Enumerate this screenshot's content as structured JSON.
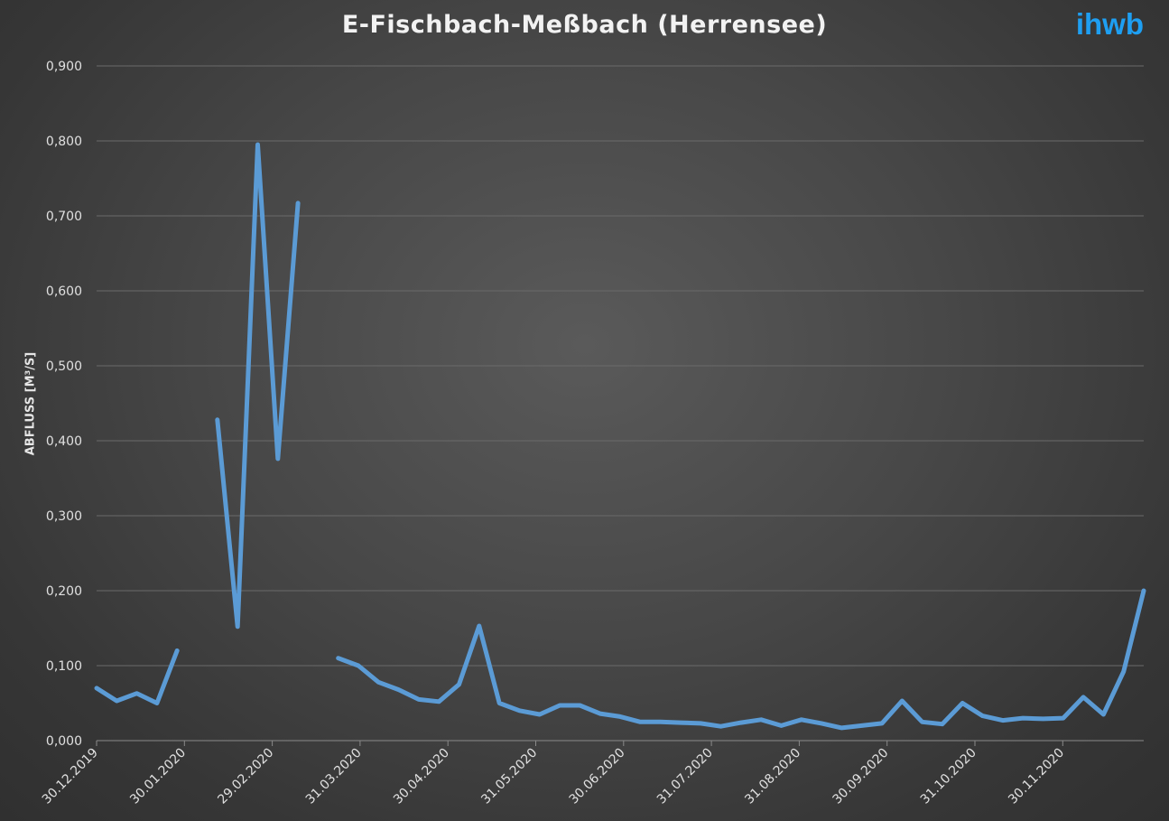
{
  "logo": "ihwb",
  "chart_data": {
    "type": "line",
    "title": "E-Fischbach-Meßbach (Herrensee)",
    "xlabel": "",
    "ylabel": "ABFLUSS [M³/S]",
    "ylim": [
      0,
      0.9
    ],
    "yticks": [
      "0,000",
      "0,100",
      "0,200",
      "0,300",
      "0,400",
      "0,500",
      "0,600",
      "0,700",
      "0,800",
      "0,900"
    ],
    "xticks": [
      "30.12.2019",
      "30.01.2020",
      "29.02.2020",
      "31.03.2020",
      "30.04.2020",
      "31.05.2020",
      "30.06.2020",
      "31.07.2020",
      "31.08.2020",
      "30.09.2020",
      "31.10.2020",
      "30.11.2020"
    ],
    "grid": true,
    "legend": "none",
    "line_color": "#5b9bd5",
    "series": [
      {
        "values": [
          0.07,
          0.053,
          0.063,
          0.05,
          0.12,
          null,
          0.428,
          0.152,
          0.795,
          0.376,
          0.717,
          null,
          0.11,
          0.1,
          0.078,
          0.068,
          0.055,
          0.052,
          0.075,
          0.153,
          0.05,
          0.04,
          0.035,
          0.047,
          0.047,
          0.036,
          0.032,
          0.025,
          0.025,
          0.024,
          0.023,
          0.019,
          0.024,
          0.028,
          0.02,
          0.028,
          0.023,
          0.017,
          0.02,
          0.023,
          0.053,
          0.025,
          0.022,
          0.05,
          0.033,
          0.027,
          0.03,
          0.029,
          0.03,
          0.058,
          0.035,
          0.092,
          0.2
        ]
      }
    ]
  }
}
